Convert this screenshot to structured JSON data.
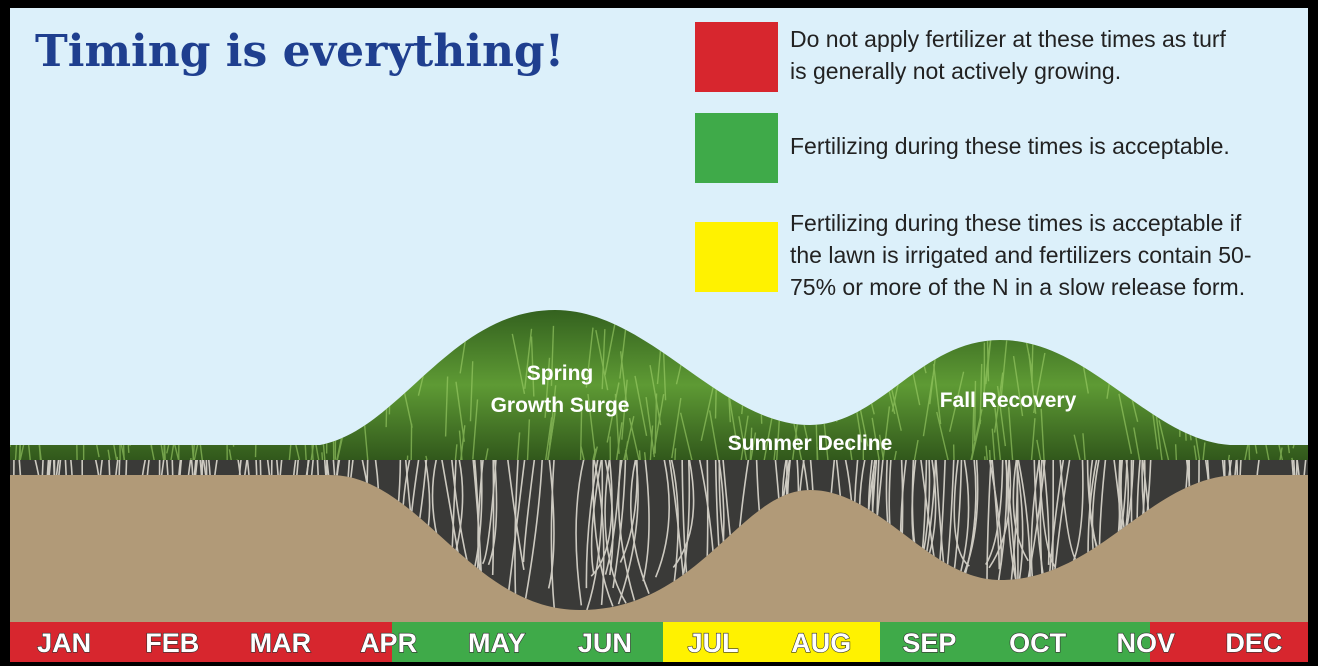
{
  "header": {
    "title": "Timing is everything!"
  },
  "legend": {
    "items": [
      {
        "color": "#d7262e",
        "lines": [
          "Do not apply fertilizer at these times as turf",
          "is generally not actively growing."
        ]
      },
      {
        "color": "#3faa49",
        "lines": [
          "Fertilizing during these times is acceptable."
        ]
      },
      {
        "color": "#fff200",
        "lines": [
          "Fertilizing during these times is acceptable if",
          "the lawn is irrigated and fertilizers contain 50-",
          "75% or more of the N in a slow release form."
        ]
      }
    ]
  },
  "phases": {
    "spring": [
      "Spring",
      "Growth Surge"
    ],
    "summer": "Summer Decline",
    "fall": "Fall Recovery"
  },
  "months": [
    "JAN",
    "FEB",
    "MAR",
    "APR",
    "MAY",
    "JUN",
    "JUL",
    "AUG",
    "SEP",
    "OCT",
    "NOV",
    "DEC"
  ]
}
